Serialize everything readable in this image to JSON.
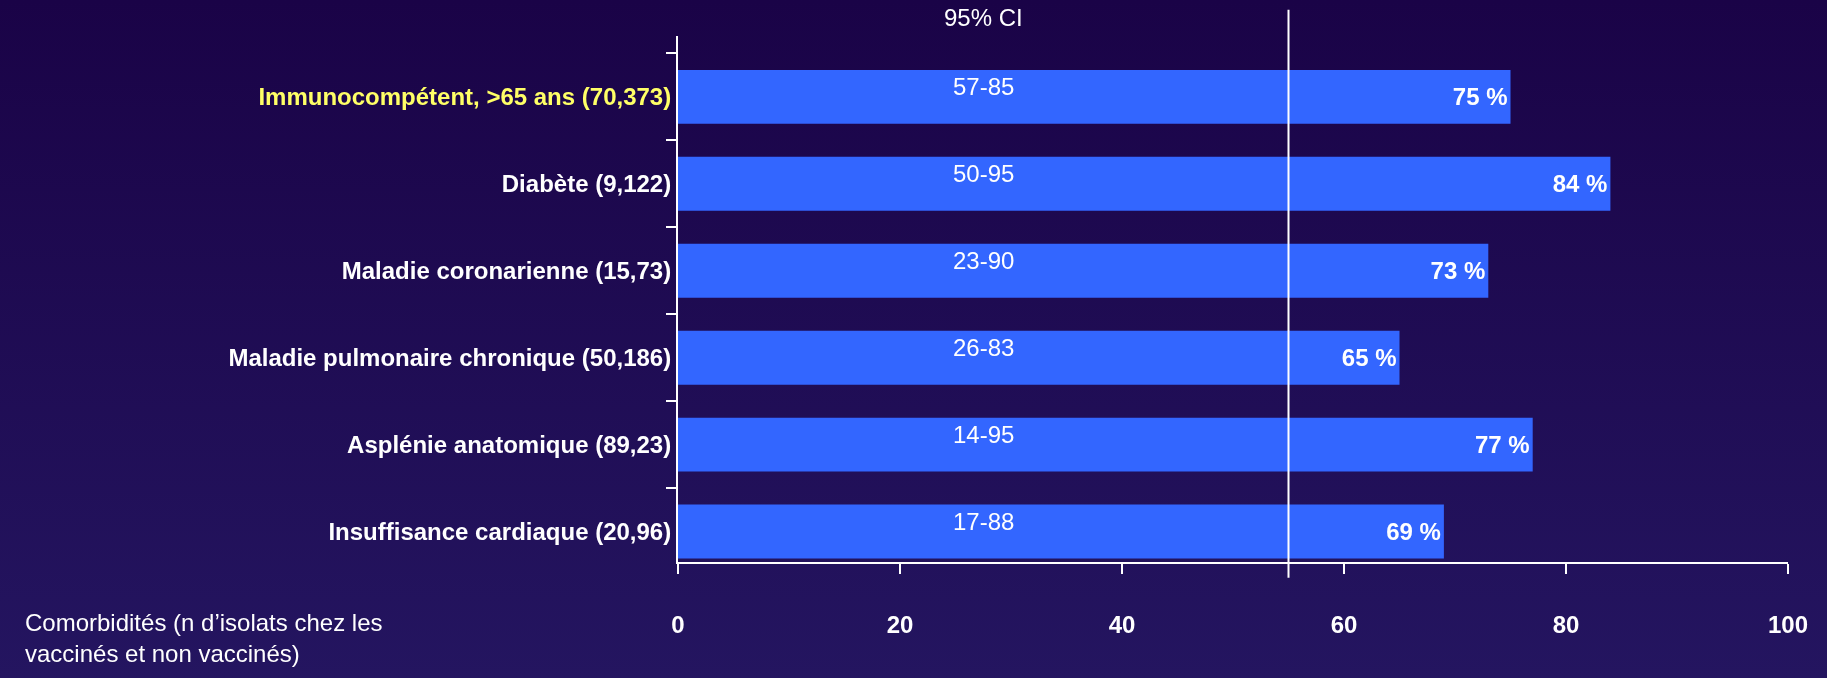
{
  "chart_data": {
    "type": "bar",
    "orientation": "horizontal",
    "ylabel": "Comorbidités (n d’isolats chez les vaccinés et non vaccinés)",
    "categories": [
      "Immunocompétent, >65 ans (70,373)",
      "Diabète (9,122)",
      "Maladie coronarienne (15,73)",
      "Maladie pulmonaire chronique (50,186)",
      "Asplénie anatomique (89,23)",
      "Insuffisance cardiaque (20,96)"
    ],
    "values": [
      75,
      84,
      73,
      65,
      77,
      69
    ],
    "value_labels": [
      "75 %",
      "84 %",
      "73 %",
      "65 %",
      "77 %",
      "69 %"
    ],
    "color": "#3366ff",
    "xlim": [
      0,
      100
    ],
    "xticks": [
      0,
      20,
      40,
      60,
      80,
      100
    ],
    "grid": false,
    "ref_lines": [
      {
        "axis": "x",
        "value": 55,
        "color": "#ffffff"
      }
    ],
    "annotations": [
      "95% CI",
      "57-85",
      "50-95",
      "23-90",
      "26-83",
      "14-95",
      "17-88"
    ]
  }
}
